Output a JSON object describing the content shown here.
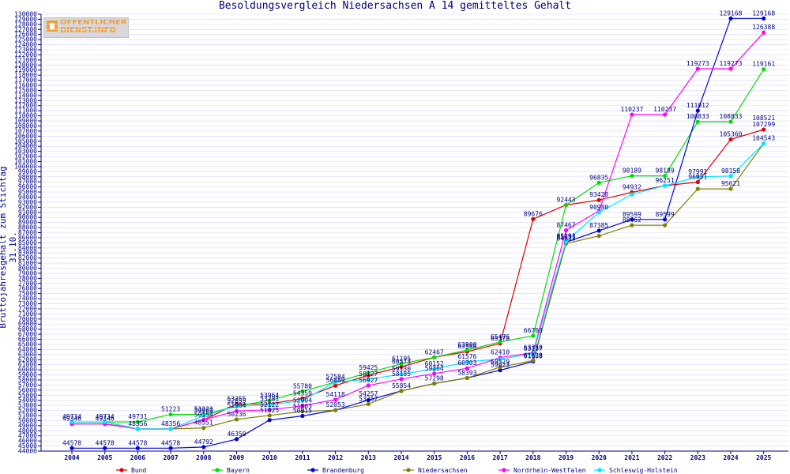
{
  "page": {
    "title": "Besoldungsvergleich Niedersachsen A 14 gemitteltes Gehalt",
    "ylabel": "Bruttojahresgehalt zum Stichtag 31.10.",
    "logo_text": "ÖFFENTLICHER\nDIENST.INFO"
  },
  "colors": {
    "text": "#000080",
    "axis": "#000080",
    "grid": "#d8d8ff",
    "Bund": "#e00000",
    "Bayern": "#00e000",
    "Brandenburg": "#0000e0",
    "Niedersachsen": "#808000",
    "Nordrhein-Westfalen": "#ff00ff",
    "Schleswig-Holstein": "#00e8ff"
  },
  "chart_data": {
    "type": "line",
    "title": "Besoldungsvergleich Niedersachsen A 14 gemitteltes Gehalt",
    "xlabel": "",
    "ylabel": "Bruttojahresgehalt zum Stichtag 31.10.",
    "ylim": [
      44000,
      130000
    ],
    "ytick_step": 1000,
    "grid": true,
    "legend": "bottom",
    "x": [
      "2004",
      "2005",
      "2006",
      "2007",
      "2008",
      "2009",
      "2010",
      "2011",
      "2012",
      "2013",
      "2014",
      "2015",
      "2016",
      "2017",
      "2018",
      "2019",
      "2020",
      "2021",
      "2022",
      "2023",
      "2024",
      "2025"
    ],
    "series": [
      {
        "name": "Bund",
        "color_key": "Bund",
        "values": [
          49734,
          49734,
          48356,
          48356,
          50154,
          53255,
          53281,
          54359,
          56889,
          58927,
          60573,
          62467,
          63580,
          65178,
          89676,
          92443,
          93428,
          94932,
          96251,
          96951,
          105360,
          107299
        ]
      },
      {
        "name": "Bayern",
        "color_key": "Bayern",
        "values": [
          49734,
          49734,
          49731,
          51223,
          51223,
          52855,
          53964,
          55780,
          57584,
          59425,
          61195,
          62467,
          63900,
          65476,
          66703,
          92443,
          96835,
          98189,
          98189,
          108833,
          108833,
          119161
        ]
      },
      {
        "name": "Brandenburg",
        "color_key": "Brandenburg",
        "values": [
          44578,
          44578,
          44578,
          44578,
          44792,
          46350,
          50114,
          50915,
          52054,
          54044,
          55854,
          57298,
          58393,
          59923,
          61638,
          85111,
          87385,
          89599,
          89599,
          111012,
          129168,
          129168
        ]
      },
      {
        "name": "Niedersachsen",
        "color_key": "Niedersachsen",
        "values": [
          49346,
          49346,
          48356,
          48356,
          48551,
          50236,
          51025,
          51803,
          52053,
          53257,
          55854,
          57298,
          58393,
          60529,
          61828,
          84833,
          86362,
          88462,
          88462,
          95621,
          95621,
          104543
        ]
      },
      {
        "name": "Nordrhein-Westfalen",
        "color_key": "Nordrhein-Westfalen",
        "values": [
          49346,
          49346,
          48356,
          48356,
          50154,
          51904,
          52122,
          52904,
          54118,
          56927,
          58185,
          59264,
          60303,
          62410,
          63359,
          87467,
          91290,
          110237,
          110237,
          119273,
          119273,
          126388
        ]
      },
      {
        "name": "Schleswig-Holstein",
        "color_key": "Schleswig-Holstein",
        "values": [
          49734,
          49734,
          48356,
          48356,
          50960,
          52855,
          53069,
          53963,
          57584,
          58127,
          59130,
          60152,
          61576,
          62119,
          63137,
          85293,
          90980,
          94539,
          96251,
          97991,
          98158,
          104543
        ]
      }
    ],
    "point_labels": [
      {
        "x": "2004",
        "text": "49734",
        "value": 49734,
        "color_key": "text"
      },
      {
        "x": "2004",
        "text": "49346",
        "value": 49346,
        "color_key": "text"
      },
      {
        "x": "2004",
        "text": "44578",
        "value": 44578,
        "color_key": "text"
      },
      {
        "x": "2005",
        "text": "49734",
        "value": 49734,
        "color_key": "text"
      },
      {
        "x": "2005",
        "text": "49346",
        "value": 49346,
        "color_key": "text"
      },
      {
        "x": "2005",
        "text": "44578",
        "value": 44578,
        "color_key": "text"
      },
      {
        "x": "2006",
        "text": "49731",
        "value": 49731,
        "color_key": "text"
      },
      {
        "x": "2006",
        "text": "48356",
        "value": 48356,
        "color_key": "text"
      },
      {
        "x": "2006",
        "text": "44578",
        "value": 44578,
        "color_key": "text"
      },
      {
        "x": "2007",
        "text": "51223",
        "value": 51223,
        "color_key": "text"
      },
      {
        "x": "2007",
        "text": "48356",
        "value": 48356,
        "color_key": "text"
      },
      {
        "x": "2007",
        "text": "44578",
        "value": 44578,
        "color_key": "text"
      },
      {
        "x": "2008",
        "text": "51223",
        "value": 51223,
        "color_key": "text"
      },
      {
        "x": "2008",
        "text": "50960",
        "value": 50960,
        "color_key": "text"
      },
      {
        "x": "2008",
        "text": "50154",
        "value": 50154,
        "color_key": "text"
      },
      {
        "x": "2008",
        "text": "48551",
        "value": 48551,
        "color_key": "text"
      },
      {
        "x": "2008",
        "text": "44792",
        "value": 44792,
        "color_key": "text"
      },
      {
        "x": "2009",
        "text": "53255",
        "value": 53255,
        "color_key": "text"
      },
      {
        "x": "2009",
        "text": "52855",
        "value": 52855,
        "color_key": "text"
      },
      {
        "x": "2009",
        "text": "51904",
        "value": 51904,
        "color_key": "text"
      },
      {
        "x": "2009",
        "text": "50236",
        "value": 50236,
        "color_key": "text"
      },
      {
        "x": "2009",
        "text": "46350",
        "value": 46350,
        "color_key": "text"
      },
      {
        "x": "2010",
        "text": "53964",
        "value": 53964,
        "color_key": "text"
      },
      {
        "x": "2010",
        "text": "53281",
        "value": 53281,
        "color_key": "text"
      },
      {
        "x": "2010",
        "text": "52122",
        "value": 52122,
        "color_key": "text"
      },
      {
        "x": "2010",
        "text": "51025",
        "value": 51025,
        "color_key": "text"
      },
      {
        "x": "2011",
        "text": "55780",
        "value": 55780,
        "color_key": "text"
      },
      {
        "x": "2011",
        "text": "54359",
        "value": 54359,
        "color_key": "text"
      },
      {
        "x": "2011",
        "text": "52904",
        "value": 52904,
        "color_key": "text"
      },
      {
        "x": "2011",
        "text": "51803",
        "value": 51803,
        "color_key": "text"
      },
      {
        "x": "2011",
        "text": "50915",
        "value": 50915,
        "color_key": "text"
      },
      {
        "x": "2012",
        "text": "57584",
        "value": 57584,
        "color_key": "text"
      },
      {
        "x": "2012",
        "text": "56889",
        "value": 56889,
        "color_key": "text"
      },
      {
        "x": "2012",
        "text": "54118",
        "value": 54118,
        "color_key": "text"
      },
      {
        "x": "2012",
        "text": "52053",
        "value": 52053,
        "color_key": "text"
      },
      {
        "x": "2013",
        "text": "59425",
        "value": 59425,
        "color_key": "text"
      },
      {
        "x": "2013",
        "text": "58127",
        "value": 58127,
        "color_key": "text"
      },
      {
        "x": "2013",
        "text": "56927",
        "value": 56927,
        "color_key": "text"
      },
      {
        "x": "2013",
        "text": "54257",
        "value": 54257,
        "color_key": "text"
      },
      {
        "x": "2013",
        "text": "53257",
        "value": 53257,
        "color_key": "text"
      },
      {
        "x": "2014",
        "text": "61195",
        "value": 61195,
        "color_key": "text"
      },
      {
        "x": "2014",
        "text": "60573",
        "value": 60573,
        "color_key": "text"
      },
      {
        "x": "2014",
        "text": "59130",
        "value": 59130,
        "color_key": "text"
      },
      {
        "x": "2014",
        "text": "58185",
        "value": 58185,
        "color_key": "text"
      },
      {
        "x": "2014",
        "text": "55854",
        "value": 55854,
        "color_key": "text"
      },
      {
        "x": "2015",
        "text": "62467",
        "value": 62467,
        "color_key": "text"
      },
      {
        "x": "2015",
        "text": "60152",
        "value": 60152,
        "color_key": "text"
      },
      {
        "x": "2015",
        "text": "59264",
        "value": 59264,
        "color_key": "text"
      },
      {
        "x": "2015",
        "text": "57298",
        "value": 57298,
        "color_key": "text"
      },
      {
        "x": "2016",
        "text": "63900",
        "value": 63900,
        "color_key": "text"
      },
      {
        "x": "2016",
        "text": "63580",
        "value": 63580,
        "color_key": "text"
      },
      {
        "x": "2016",
        "text": "61576",
        "value": 61576,
        "color_key": "text"
      },
      {
        "x": "2016",
        "text": "60303",
        "value": 60303,
        "color_key": "text"
      },
      {
        "x": "2016",
        "text": "58393",
        "value": 58393,
        "color_key": "text"
      },
      {
        "x": "2017",
        "text": "65476",
        "value": 65476,
        "color_key": "text"
      },
      {
        "x": "2017",
        "text": "65178",
        "value": 65178,
        "color_key": "text"
      },
      {
        "x": "2017",
        "text": "62410",
        "value": 62410,
        "color_key": "text"
      },
      {
        "x": "2017",
        "text": "60529",
        "value": 60529,
        "color_key": "text"
      },
      {
        "x": "2017",
        "text": "59923",
        "value": 59923,
        "color_key": "text"
      },
      {
        "x": "2018",
        "text": "89676",
        "value": 89676,
        "color_key": "text"
      },
      {
        "x": "2018",
        "text": "66703",
        "value": 66703,
        "color_key": "text"
      },
      {
        "x": "2018",
        "text": "63359",
        "value": 63359,
        "color_key": "text"
      },
      {
        "x": "2018",
        "text": "63137",
        "value": 63137,
        "color_key": "text"
      },
      {
        "x": "2018",
        "text": "61828",
        "value": 61828,
        "color_key": "text"
      },
      {
        "x": "2018",
        "text": "61638",
        "value": 61638,
        "color_key": "text"
      },
      {
        "x": "2019",
        "text": "92443",
        "value": 92443,
        "color_key": "text"
      },
      {
        "x": "2019",
        "text": "87467",
        "value": 87467,
        "color_key": "text"
      },
      {
        "x": "2019",
        "text": "85293",
        "value": 85293,
        "color_key": "text"
      },
      {
        "x": "2019",
        "text": "85111",
        "value": 85111,
        "color_key": "text"
      },
      {
        "x": "2019",
        "text": "84833",
        "value": 84833,
        "color_key": "text"
      },
      {
        "x": "2020",
        "text": "96835",
        "value": 96835,
        "color_key": "text"
      },
      {
        "x": "2020",
        "text": "93428",
        "value": 93428,
        "color_key": "text"
      },
      {
        "x": "2020",
        "text": "90980",
        "value": 90980,
        "color_key": "text"
      },
      {
        "x": "2020",
        "text": "87385",
        "value": 87385,
        "color_key": "text"
      },
      {
        "x": "2021",
        "text": "110237",
        "value": 110237,
        "color_key": "text"
      },
      {
        "x": "2021",
        "text": "98189",
        "value": 98189,
        "color_key": "text"
      },
      {
        "x": "2021",
        "text": "94932",
        "value": 94932,
        "color_key": "text"
      },
      {
        "x": "2021",
        "text": "89599",
        "value": 89599,
        "color_key": "text"
      },
      {
        "x": "2021",
        "text": "88462",
        "value": 88462,
        "color_key": "text"
      },
      {
        "x": "2022",
        "text": "110237",
        "value": 110237,
        "color_key": "text"
      },
      {
        "x": "2022",
        "text": "98189",
        "value": 98189,
        "color_key": "text"
      },
      {
        "x": "2022",
        "text": "96251",
        "value": 96251,
        "color_key": "text"
      },
      {
        "x": "2022",
        "text": "89599",
        "value": 89599,
        "color_key": "text"
      },
      {
        "x": "2023",
        "text": "119273",
        "value": 119273,
        "color_key": "text"
      },
      {
        "x": "2023",
        "text": "111012",
        "value": 111012,
        "color_key": "text"
      },
      {
        "x": "2023",
        "text": "108833",
        "value": 108833,
        "color_key": "text"
      },
      {
        "x": "2023",
        "text": "97991",
        "value": 97991,
        "color_key": "text"
      },
      {
        "x": "2023",
        "text": "96951",
        "value": 96951,
        "color_key": "text"
      },
      {
        "x": "2024",
        "text": "129168",
        "value": 129168,
        "color_key": "text"
      },
      {
        "x": "2024",
        "text": "119273",
        "value": 119273,
        "color_key": "text"
      },
      {
        "x": "2024",
        "text": "108833",
        "value": 108833,
        "color_key": "text"
      },
      {
        "x": "2024",
        "text": "105360",
        "value": 105360,
        "color_key": "text"
      },
      {
        "x": "2024",
        "text": "98158",
        "value": 98158,
        "color_key": "text"
      },
      {
        "x": "2024",
        "text": "95621",
        "value": 95621,
        "color_key": "text"
      },
      {
        "x": "2025",
        "text": "129168",
        "value": 129168,
        "color_key": "text"
      },
      {
        "x": "2025",
        "text": "126388",
        "value": 126388,
        "color_key": "text"
      },
      {
        "x": "2025",
        "text": "119161",
        "value": 119161,
        "color_key": "text"
      },
      {
        "x": "2025",
        "text": "108521",
        "value": 108521,
        "color_key": "text"
      },
      {
        "x": "2025",
        "text": "107299",
        "value": 107299,
        "color_key": "text"
      },
      {
        "x": "2025",
        "text": "104543",
        "value": 104543,
        "color_key": "text"
      }
    ]
  }
}
